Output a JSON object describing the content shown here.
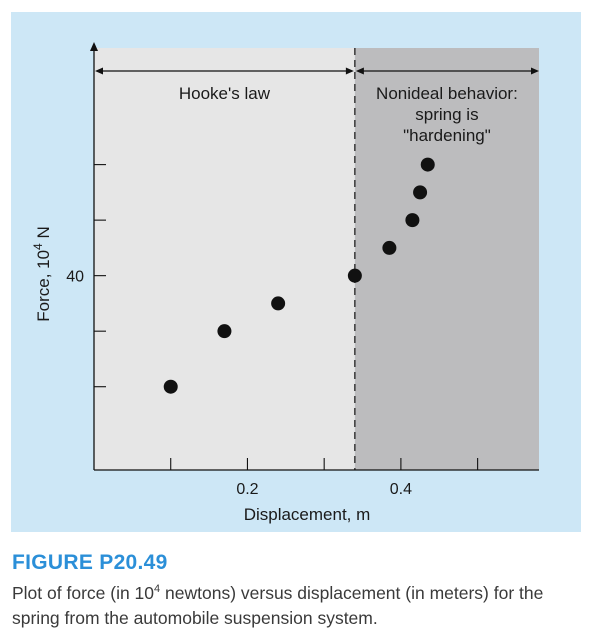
{
  "chart_data": {
    "type": "scatter",
    "xlabel": "Displacement, m",
    "ylabel_text": "Force, 10",
    "ylabel_exp": "4",
    "ylabel_unit": " N",
    "x_ticks": [
      0.1,
      0.2,
      0.3,
      0.4,
      0.5
    ],
    "x_tick_labels": [
      {
        "value": 0.2,
        "label": "0.2"
      },
      {
        "value": 0.4,
        "label": "0.4"
      }
    ],
    "y_ticks": [
      20,
      30,
      40,
      50,
      60
    ],
    "y_tick_labels": [
      {
        "value": 40,
        "label": "40"
      }
    ],
    "xlim": [
      0.0,
      0.58
    ],
    "ylim": [
      5.0,
      81.0
    ],
    "points": [
      {
        "x": 0.1,
        "y": 20.0
      },
      {
        "x": 0.17,
        "y": 30.0
      },
      {
        "x": 0.24,
        "y": 35.0
      },
      {
        "x": 0.34,
        "y": 40.0
      },
      {
        "x": 0.385,
        "y": 45.0
      },
      {
        "x": 0.415,
        "y": 50.0
      },
      {
        "x": 0.425,
        "y": 55.0
      },
      {
        "x": 0.435,
        "y": 60.0
      }
    ],
    "boundary_x": 0.34,
    "regions": [
      {
        "label_lines": [
          "Hooke's law"
        ],
        "color": "#e6e6e6"
      },
      {
        "label_lines": [
          "Nonideal behavior:",
          "spring is",
          "\"hardening\""
        ],
        "color": "#bcbcbe"
      }
    ],
    "grid": false
  },
  "caption": {
    "title": "FIGURE P20.49",
    "text_before": "Plot of force (in 10",
    "text_sup": "4",
    "text_after": " newtons) versus displacement (in meters) for the spring from the automobile suspension system."
  },
  "colors": {
    "panel_bg": "#cde7f6",
    "hooke_region": "#e6e6e6",
    "nonideal_region": "#bcbcbe",
    "caption_title": "#2b8fd8",
    "marker": "#111111"
  }
}
